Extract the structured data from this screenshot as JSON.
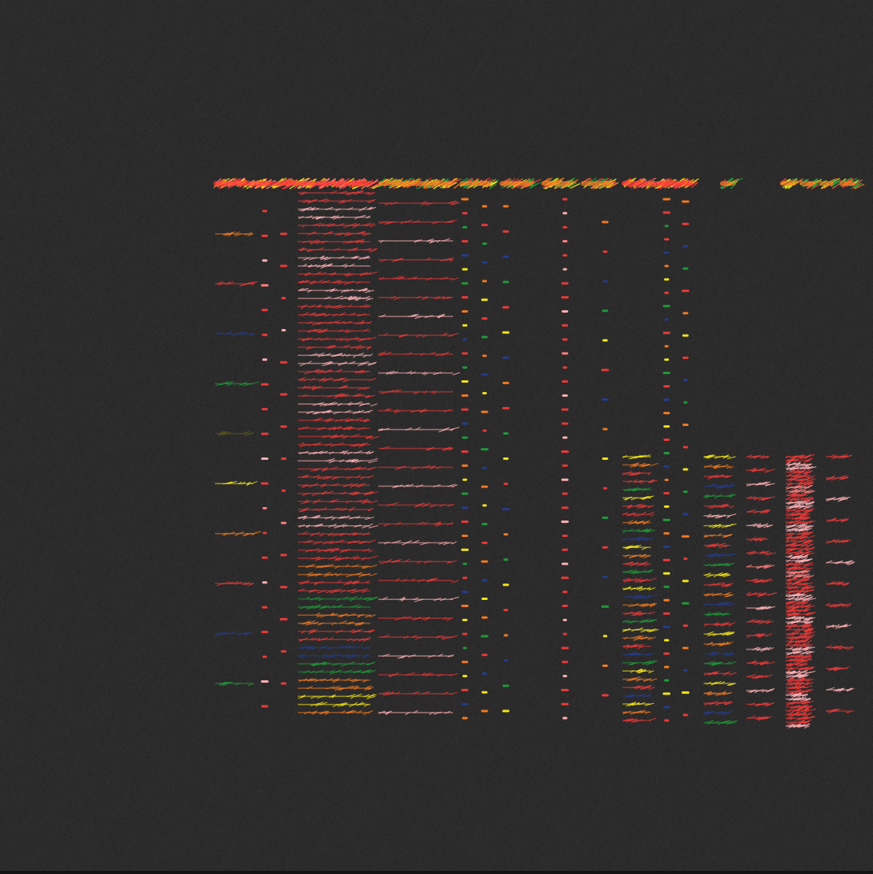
{
  "canvas": {
    "background": "#2c2b2b",
    "edge_color": "#141414"
  },
  "palette": {
    "red": "#e83a3a",
    "bright_red": "#ff3b3b",
    "pink": "#ffb0b5",
    "salmon": "#ff7f7f",
    "orange": "#f07a23",
    "yellow": "#f2e51c",
    "green": "#1f9a3a",
    "blue": "#243c8a",
    "olive": "#5b5a1a"
  },
  "columns": [
    {
      "name": "col-1",
      "style": "strokes",
      "top_band": "red",
      "colors": [
        "orange",
        "red",
        "blue",
        "green",
        "olive",
        "yellow",
        "orange",
        "red",
        "blue",
        "green"
      ]
    },
    {
      "name": "col-2",
      "style": "dots",
      "colors": [
        "red",
        "red",
        "pink",
        "salmon",
        "red",
        "red",
        "pink",
        "red",
        "red",
        "red",
        "pink",
        "red",
        "salmon",
        "red",
        "red",
        "pink",
        "red",
        "red",
        "red",
        "pink",
        "red"
      ]
    },
    {
      "name": "col-3",
      "style": "dots",
      "colors": [
        "red",
        "red",
        "red",
        "pink",
        "red",
        "red",
        "red",
        "red",
        "red",
        "salmon",
        "red",
        "red",
        "red",
        "red",
        "red"
      ]
    },
    {
      "name": "col-4",
      "style": "dense-strokes",
      "top_band": "red",
      "colors": [
        "red",
        "pink",
        "red",
        "red",
        "pink",
        "red",
        "pink",
        "red",
        "red",
        "red",
        "pink",
        "red",
        "red",
        "pink",
        "red",
        "red",
        "pink",
        "red",
        "red",
        "red",
        "pink",
        "red",
        "red",
        "orange",
        "red",
        "green",
        "orange",
        "red",
        "blue",
        "green",
        "orange",
        "yellow",
        "orange"
      ]
    },
    {
      "name": "col-5",
      "style": "strokes",
      "top_band": "mixed",
      "colors": [
        "red",
        "red",
        "pink",
        "red",
        "red",
        "red",
        "pink",
        "red",
        "red",
        "pink",
        "red",
        "red",
        "pink",
        "red",
        "red",
        "pink",
        "red",
        "red",
        "pink",
        "red",
        "red",
        "pink",
        "red",
        "red",
        "pink",
        "red",
        "red",
        "pink"
      ]
    },
    {
      "name": "col-6",
      "style": "dots",
      "top_band": "mixed",
      "colors": [
        "orange",
        "red",
        "green",
        "red",
        "blue",
        "yellow",
        "green",
        "red",
        "orange",
        "yellow",
        "blue",
        "red",
        "green",
        "yellow",
        "orange",
        "red",
        "blue",
        "green",
        "red",
        "orange",
        "yellow",
        "green",
        "blue",
        "red",
        "orange",
        "yellow",
        "green",
        "red",
        "blue",
        "orange",
        "yellow",
        "red",
        "green",
        "orange",
        "yellow",
        "red",
        "blue",
        "orange"
      ]
    },
    {
      "name": "col-7",
      "style": "dots",
      "top_band": "mixed",
      "colors": [
        "orange",
        "red",
        "green",
        "blue",
        "orange",
        "yellow",
        "red",
        "green",
        "orange",
        "blue",
        "yellow",
        "orange",
        "red",
        "green",
        "blue",
        "orange",
        "yellow",
        "green",
        "red",
        "orange",
        "blue",
        "yellow",
        "orange",
        "green",
        "red",
        "blue",
        "yellow",
        "orange"
      ]
    },
    {
      "name": "col-8",
      "style": "dots",
      "top_band": "mixed",
      "colors": [
        "orange",
        "red",
        "blue",
        "green",
        "red",
        "yellow",
        "blue",
        "orange",
        "red",
        "green",
        "yellow",
        "red",
        "blue",
        "orange",
        "green",
        "yellow",
        "red",
        "orange",
        "blue",
        "green",
        "yellow"
      ]
    },
    {
      "name": "col-9",
      "style": "dots",
      "top_band": "mixed",
      "colors": [
        "red",
        "pink",
        "red",
        "salmon",
        "red",
        "pink",
        "red",
        "red",
        "pink",
        "red",
        "red",
        "salmon",
        "red",
        "red",
        "pink",
        "red",
        "red",
        "pink",
        "red",
        "red",
        "pink",
        "red",
        "red",
        "pink",
        "red",
        "red",
        "pink",
        "red",
        "red",
        "red",
        "pink",
        "red",
        "red",
        "red",
        "pink",
        "red",
        "red",
        "pink"
      ]
    },
    {
      "name": "col-10",
      "style": "dots",
      "top_band": "mixed",
      "colors": [
        "orange",
        "red",
        "blue",
        "green",
        "yellow",
        "red",
        "blue",
        "orange",
        "yellow",
        "red",
        "green",
        "red",
        "blue",
        "green",
        "yellow",
        "orange",
        "red"
      ]
    },
    {
      "name": "col-11",
      "style": "strokes",
      "top_band": "red",
      "colors": [
        "yellow",
        "orange",
        "red",
        "red",
        "green",
        "yellow",
        "red",
        "red",
        "orange",
        "green",
        "blue",
        "yellow",
        "orange",
        "red",
        "green",
        "red",
        "yellow",
        "blue",
        "orange",
        "red",
        "green",
        "yellow",
        "orange",
        "red",
        "blue",
        "green",
        "yellow",
        "orange",
        "red",
        "blue",
        "yellow",
        "orange",
        "red"
      ]
    },
    {
      "name": "col-12",
      "style": "dots",
      "colors": [
        "orange",
        "red",
        "green",
        "red",
        "blue",
        "orange",
        "yellow",
        "red",
        "green",
        "blue",
        "red",
        "orange",
        "yellow",
        "green",
        "red",
        "blue",
        "orange",
        "yellow",
        "red",
        "green",
        "blue",
        "orange",
        "red",
        "yellow",
        "green",
        "orange",
        "blue",
        "red",
        "yellow",
        "green",
        "orange",
        "red",
        "blue",
        "yellow",
        "red",
        "orange",
        "green",
        "yellow",
        "blue",
        "red"
      ]
    },
    {
      "name": "col-13",
      "style": "dots",
      "colors": [
        "orange",
        "red",
        "blue",
        "green",
        "red",
        "orange",
        "yellow",
        "red",
        "blue",
        "green",
        "orange",
        "red",
        "yellow",
        "green",
        "blue",
        "orange",
        "red",
        "yellow",
        "green",
        "red",
        "orange",
        "blue",
        "yellow",
        "red"
      ]
    },
    {
      "name": "col-14",
      "style": "strokes",
      "colors": [
        "yellow",
        "orange",
        "red",
        "blue",
        "green",
        "red",
        "pink",
        "yellow",
        "orange",
        "red",
        "blue",
        "green",
        "yellow",
        "red",
        "orange",
        "blue",
        "green",
        "red",
        "yellow",
        "orange",
        "blue",
        "green",
        "red",
        "yellow",
        "orange",
        "red",
        "blue",
        "green"
      ]
    },
    {
      "name": "col-15",
      "style": "strokes",
      "top_band": "red",
      "colors": [
        "red",
        "red",
        "pink",
        "red",
        "red",
        "pink",
        "red",
        "red",
        "salmon",
        "red",
        "red",
        "pink",
        "red",
        "red",
        "pink",
        "red",
        "red",
        "pink",
        "red",
        "red"
      ]
    },
    {
      "name": "col-16",
      "style": "dense-strokes",
      "top_band": "red",
      "colors": [
        "red",
        "pink",
        "red",
        "red",
        "salmon",
        "red",
        "pink",
        "red",
        "red",
        "pink",
        "red",
        "red",
        "red",
        "pink",
        "red",
        "salmon",
        "red",
        "red",
        "pink",
        "red",
        "red",
        "pink",
        "red",
        "red",
        "red",
        "pink",
        "red",
        "red",
        "pink",
        "red",
        "red",
        "pink",
        "red",
        "red",
        "red",
        "pink"
      ]
    },
    {
      "name": "col-17",
      "style": "strokes",
      "top_band": "mixed",
      "colors": [
        "red",
        "red",
        "pink",
        "red",
        "red",
        "pink",
        "red",
        "red",
        "pink",
        "red",
        "red",
        "pink",
        "red"
      ]
    }
  ]
}
